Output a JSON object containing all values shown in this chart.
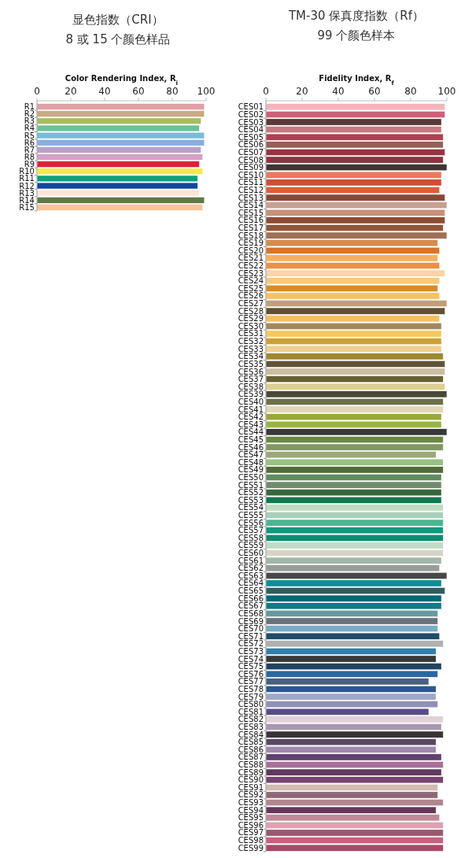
{
  "chart_data": [
    {
      "type": "bar",
      "orientation": "horizontal",
      "title": "显色指数（CRI）",
      "subtitle": "8 或 15 个颜色样品",
      "xlabel": "Color Rendering Index, R$_{i}$",
      "categories": [
        "R1",
        "R2",
        "R3",
        "R4",
        "R5",
        "R6",
        "R7",
        "R8",
        "R9",
        "R10",
        "R11",
        "R12",
        "R13",
        "R14",
        "R15"
      ],
      "values": [
        99,
        99,
        97,
        96,
        99,
        99,
        97,
        98,
        96,
        98,
        95,
        95,
        96,
        99,
        98
      ],
      "colors": [
        "#e0a0a8",
        "#c8aa80",
        "#a8bc60",
        "#6cc098",
        "#78bcd8",
        "#88aee0",
        "#b8a0cc",
        "#d8a0c8",
        "#e0203c",
        "#f8e850",
        "#10a080",
        "#1048a0",
        "#fce4d8",
        "#607848",
        "#f8c498"
      ],
      "xlim": [
        0,
        100
      ],
      "xticks": [
        0,
        20,
        40,
        60,
        80,
        100
      ]
    },
    {
      "type": "bar",
      "orientation": "horizontal",
      "title": "TM-30 保真度指数（Rf）",
      "subtitle": "99 个颜色样本",
      "xlabel": "Fidelity Index, R$_{f}$",
      "categories": [
        "CES01",
        "CES02",
        "CES03",
        "CES04",
        "CES05",
        "CES06",
        "CES07",
        "CES08",
        "CES09",
        "CES10",
        "CES11",
        "CES12",
        "CES13",
        "CES14",
        "CES15",
        "CES16",
        "CES17",
        "CES18",
        "CES19",
        "CES20",
        "CES21",
        "CES22",
        "CES23",
        "CES24",
        "CES25",
        "CES26",
        "CES27",
        "CES28",
        "CES29",
        "CES30",
        "CES31",
        "CES32",
        "CES33",
        "CES34",
        "CES35",
        "CES36",
        "CES37",
        "CES38",
        "CES39",
        "CES40",
        "CES41",
        "CES42",
        "CES43",
        "CES44",
        "CES45",
        "CES46",
        "CES47",
        "CES48",
        "CES49",
        "CES50",
        "CES51",
        "CES52",
        "CES53",
        "CES54",
        "CES55",
        "CES56",
        "CES57",
        "CES58",
        "CES59",
        "CES60",
        "CES61",
        "CES62",
        "CES63",
        "CES64",
        "CES65",
        "CES66",
        "CES67",
        "CES68",
        "CES69",
        "CES70",
        "CES71",
        "CES72",
        "CES73",
        "CES74",
        "CES75",
        "CES76",
        "CES77",
        "CES78",
        "CES79",
        "CES80",
        "CES81",
        "CES82",
        "CES83",
        "CES84",
        "CES85",
        "CES86",
        "CES87",
        "CES88",
        "CES89",
        "CES90",
        "CES91",
        "CES92",
        "CES93",
        "CES94",
        "CES95",
        "CES96",
        "CES97",
        "CES98",
        "CES99"
      ],
      "values": [
        99,
        99,
        97,
        97,
        98,
        98,
        99,
        98,
        100,
        97,
        97,
        96,
        99,
        100,
        99,
        99,
        98,
        100,
        95,
        96,
        95,
        96,
        99,
        96,
        95,
        96,
        100,
        99,
        96,
        97,
        97,
        97,
        97,
        98,
        99,
        99,
        98,
        99,
        100,
        98,
        98,
        97,
        97,
        100,
        98,
        98,
        94,
        98,
        98,
        97,
        97,
        97,
        97,
        98,
        98,
        98,
        98,
        98,
        98,
        98,
        97,
        96,
        100,
        97,
        99,
        97,
        97,
        95,
        95,
        95,
        96,
        98,
        94,
        94,
        97,
        95,
        90,
        94,
        94,
        95,
        90,
        98,
        97,
        98,
        94,
        94,
        97,
        98,
        97,
        98,
        95,
        95,
        98,
        94,
        96,
        98,
        98,
        98,
        98
      ],
      "colors": [
        "#f4b4bc",
        "#cc6078",
        "#583838",
        "#c87880",
        "#b04050",
        "#946058",
        "#983440",
        "#8c3440",
        "#403434",
        "#ec7860",
        "#c85038",
        "#e05c3c",
        "#884838",
        "#c8a090",
        "#c89078",
        "#8c4c30",
        "#905434",
        "#a07058",
        "#d48c50",
        "#d87428",
        "#f8b060",
        "#f09040",
        "#f8d4a8",
        "#f8c878",
        "#d88c24",
        "#f8c068",
        "#c0a078",
        "#605030",
        "#f0c060",
        "#a08860",
        "#f4c860",
        "#d0a030",
        "#f0d090",
        "#a08830",
        "#605438",
        "#ccbca0",
        "#686030",
        "#dcd090",
        "#484838",
        "#6c7048",
        "#e0d8b0",
        "#98a838",
        "#98b440",
        "#383838",
        "#688840",
        "#809860",
        "#9ca878",
        "#98c080",
        "#506c38",
        "#608c60",
        "#708c6c",
        "#386840",
        "#107850",
        "#c0dcc0",
        "#a8d0b8",
        "#48b890",
        "#10987c",
        "#108c70",
        "#c0dcc8",
        "#d8d4c8",
        "#a0b8a8",
        "#989c98",
        "#484848",
        "#108c98",
        "#305c60",
        "#006878",
        "#107c88",
        "#6898a0",
        "#687478",
        "#78acc8",
        "#204c68",
        "#b0b0b0",
        "#2c80a8",
        "#383838",
        "#204460",
        "#2c68a0",
        "#486080",
        "#2c5890",
        "#a0a8c8",
        "#9090b8",
        "#584c88",
        "#e0d0d8",
        "#a898b0",
        "#383438",
        "#584860",
        "#a088b0",
        "#604070",
        "#a87098",
        "#603860",
        "#784470",
        "#d0bcb0",
        "#906878",
        "#b08890",
        "#683858",
        "#c08898",
        "#e0a0b0",
        "#985870",
        "#c86080",
        "#a84868"
      ],
      "xlim": [
        0,
        100
      ],
      "xticks": [
        0,
        20,
        40,
        60,
        80,
        100
      ]
    }
  ]
}
